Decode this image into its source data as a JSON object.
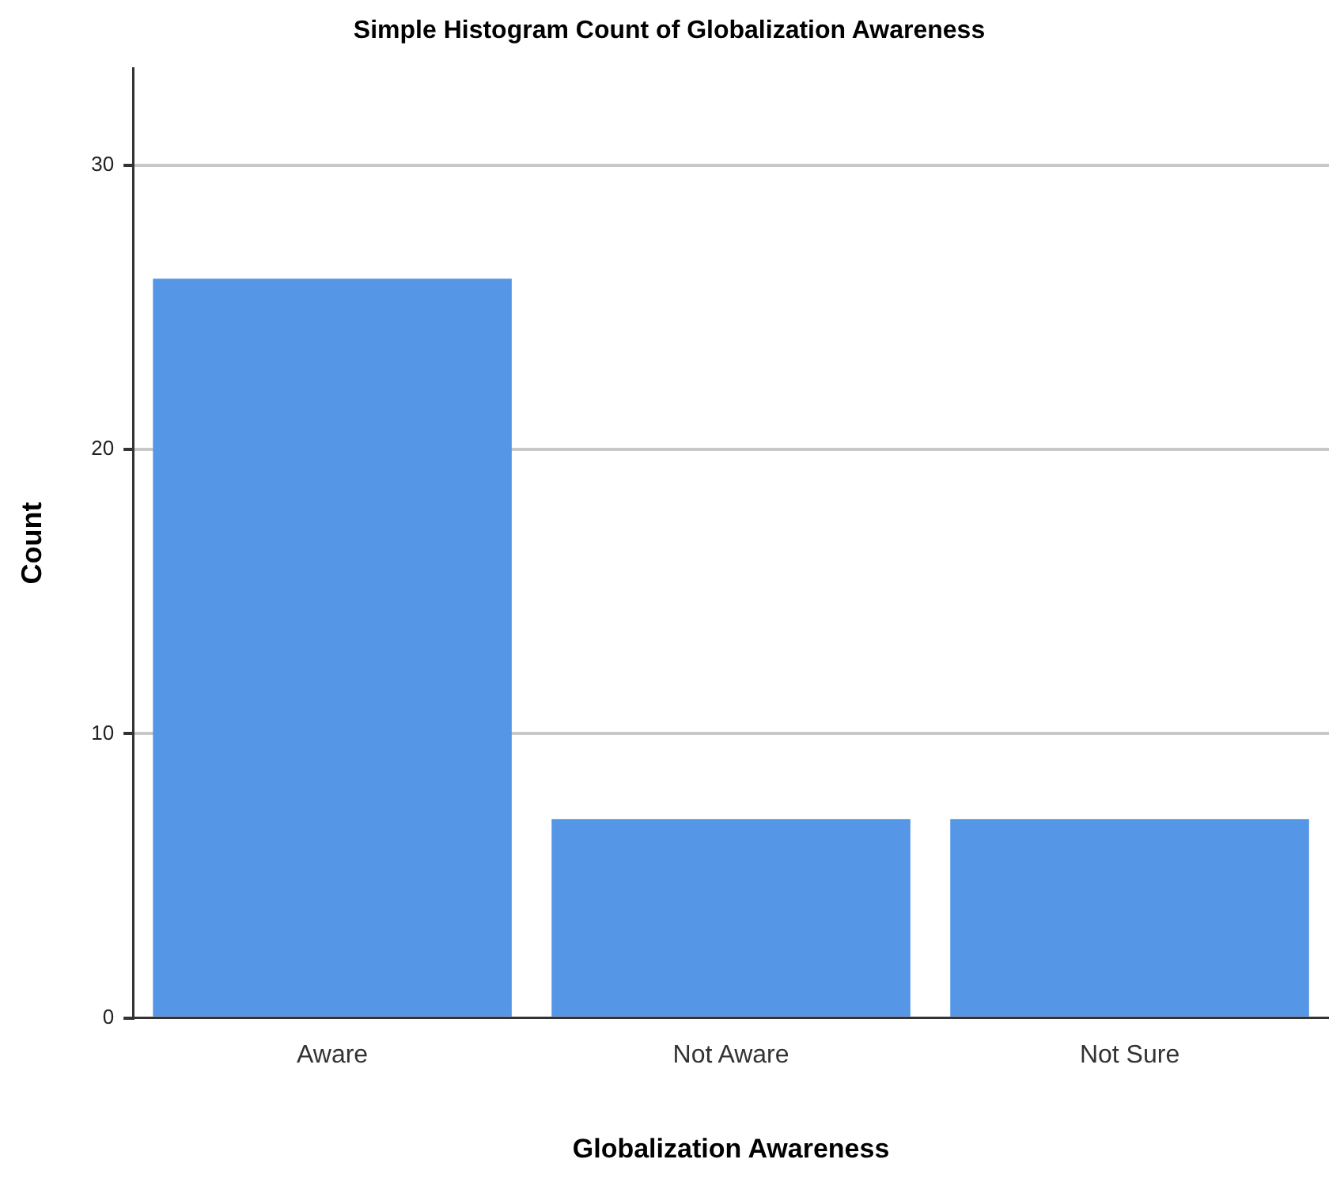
{
  "chart_data": {
    "type": "bar",
    "title": "Simple Histogram Count of Globalization Awareness",
    "xlabel": "Globalization Awareness",
    "ylabel": "Count",
    "categories": [
      "Aware",
      "Not Aware",
      "Not Sure"
    ],
    "values": [
      26,
      7,
      7
    ],
    "color": "#5596e6",
    "ylim": [
      0,
      33.4
    ],
    "yticks": [
      0,
      10,
      20,
      30
    ],
    "grid": "y"
  }
}
